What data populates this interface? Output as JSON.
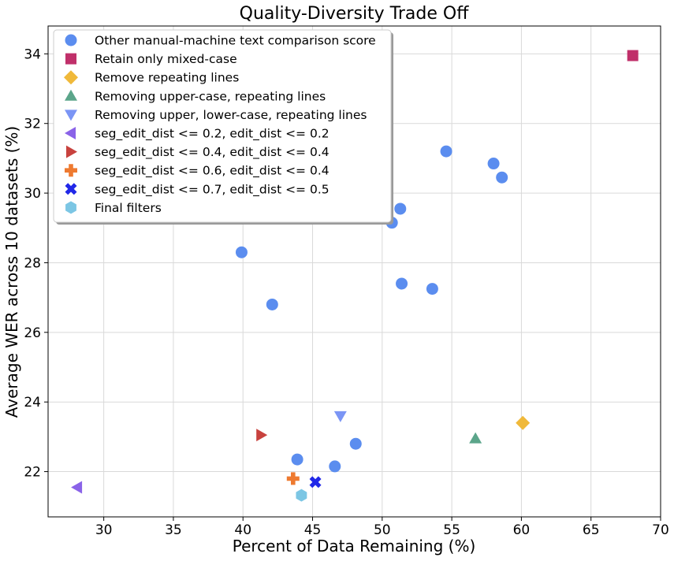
{
  "chart_data": {
    "type": "scatter",
    "title": "Quality-Diversity Trade Off",
    "xlabel": "Percent of Data Remaining (%)",
    "ylabel": "Average WER across 10 datasets (%)",
    "xlim": [
      26,
      70
    ],
    "ylim": [
      20.7,
      34.8
    ],
    "xticks": [
      30,
      35,
      40,
      45,
      50,
      55,
      60,
      65,
      70
    ],
    "yticks": [
      22,
      24,
      26,
      28,
      30,
      32,
      34
    ],
    "grid": true,
    "legend_position": "top-left",
    "series": [
      {
        "name": "Other manual-machine text comparison score",
        "marker": "circle",
        "color": "#5b8def",
        "points": [
          [
            39.9,
            28.3
          ],
          [
            42.1,
            26.8
          ],
          [
            43.9,
            22.35
          ],
          [
            46.6,
            22.15
          ],
          [
            48.1,
            22.8
          ],
          [
            50.7,
            29.15
          ],
          [
            51.3,
            29.55
          ],
          [
            51.4,
            27.4
          ],
          [
            53.6,
            27.25
          ],
          [
            54.6,
            31.2
          ],
          [
            58.0,
            30.85
          ],
          [
            58.6,
            30.45
          ]
        ]
      },
      {
        "name": "Retain only mixed-case",
        "marker": "square",
        "color": "#c0306a",
        "points": [
          [
            68.0,
            33.95
          ]
        ]
      },
      {
        "name": "Remove repeating lines",
        "marker": "diamond",
        "color": "#f0b93a",
        "points": [
          [
            60.1,
            23.4
          ]
        ]
      },
      {
        "name": "Removing upper-case, repeating lines",
        "marker": "triangle-up",
        "color": "#5ba58a",
        "points": [
          [
            56.7,
            22.95
          ]
        ]
      },
      {
        "name": "Removing upper, lower-case, repeating lines",
        "marker": "triangle-down",
        "color": "#7b95f5",
        "points": [
          [
            47.0,
            23.6
          ]
        ]
      },
      {
        "name": "seg_edit_dist <= 0.2, edit_dist <= 0.2",
        "marker": "triangle-left",
        "color": "#8a63e8",
        "points": [
          [
            28.1,
            21.55
          ]
        ]
      },
      {
        "name": "seg_edit_dist <= 0.4, edit_dist <= 0.4",
        "marker": "triangle-right",
        "color": "#c8423e",
        "points": [
          [
            41.3,
            23.05
          ]
        ]
      },
      {
        "name": "seg_edit_dist <= 0.6, edit_dist <= 0.4",
        "marker": "plus",
        "color": "#ee7a30",
        "points": [
          [
            43.6,
            21.8
          ]
        ]
      },
      {
        "name": "seg_edit_dist <= 0.7, edit_dist <= 0.5",
        "marker": "x",
        "color": "#2128e8",
        "points": [
          [
            45.2,
            21.7
          ]
        ]
      },
      {
        "name": "Final filters",
        "marker": "hexagon",
        "color": "#7cc6e4",
        "points": [
          [
            44.2,
            21.32
          ]
        ]
      }
    ]
  }
}
